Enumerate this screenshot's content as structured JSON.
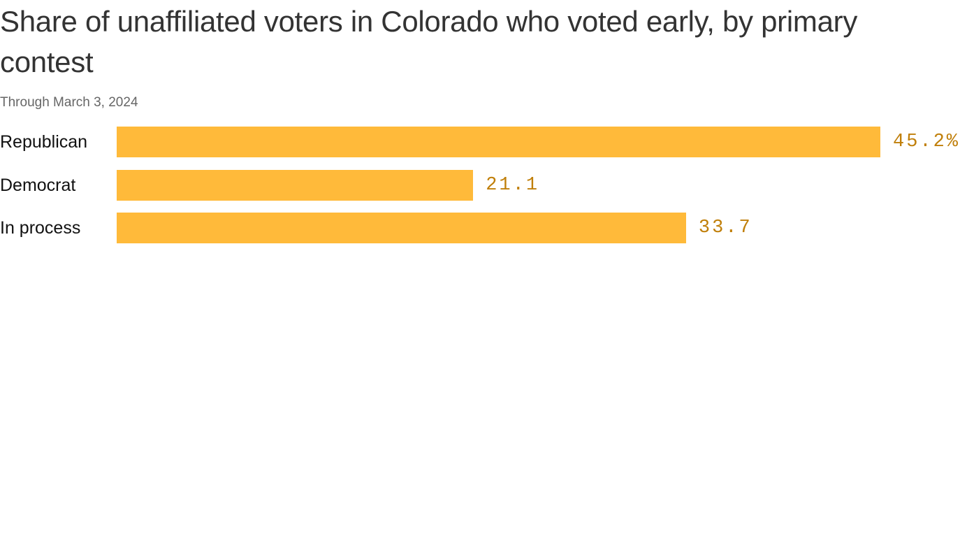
{
  "chart_data": {
    "type": "bar",
    "orientation": "horizontal",
    "title": "Share of unaffiliated voters in Colorado who voted early, by primary contest",
    "subtitle": "Through March 3, 2024",
    "categories": [
      "Republican",
      "Democrat",
      "In process"
    ],
    "values": [
      45.2,
      21.1,
      33.7
    ],
    "value_labels": [
      "45.2%",
      "21.1",
      "33.7"
    ],
    "unit": "%",
    "xlim": [
      0,
      45.2
    ],
    "grid": false,
    "colors": {
      "bar": "#ffba3a",
      "label": "#c07f0a"
    }
  }
}
